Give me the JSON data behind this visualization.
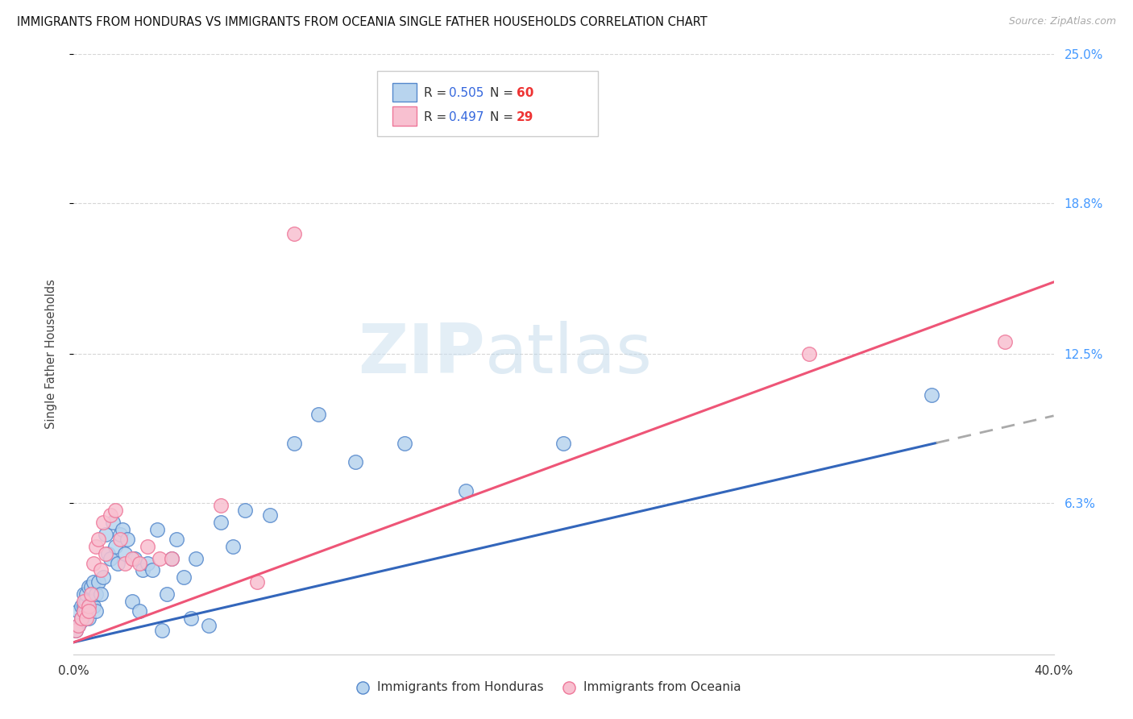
{
  "title": "IMMIGRANTS FROM HONDURAS VS IMMIGRANTS FROM OCEANIA SINGLE FATHER HOUSEHOLDS CORRELATION CHART",
  "source": "Source: ZipAtlas.com",
  "ylabel": "Single Father Households",
  "xlim": [
    0.0,
    0.4
  ],
  "ylim": [
    0.0,
    0.25
  ],
  "xticks": [
    0.0,
    0.1,
    0.2,
    0.3,
    0.4
  ],
  "xtick_labels": [
    "0.0%",
    "",
    "",
    "",
    "40.0%"
  ],
  "ytick_vals_right": [
    0.063,
    0.125,
    0.188,
    0.25
  ],
  "ytick_labels_right": [
    "6.3%",
    "12.5%",
    "18.8%",
    "25.0%"
  ],
  "series1_color": "#b8d4ee",
  "series1_edge": "#5588cc",
  "series2_color": "#f8c0d0",
  "series2_edge": "#ee7799",
  "trendline1_color": "#3366bb",
  "trendline2_color": "#ee5577",
  "trendline_ext_color": "#aaaaaa",
  "R1": 0.505,
  "N1": 60,
  "R2": 0.497,
  "N2": 29,
  "legend_label1": "Immigrants from Honduras",
  "legend_label2": "Immigrants from Oceania",
  "watermark_zip": "ZIP",
  "watermark_atlas": "atlas",
  "title_fontsize": 10.5,
  "source_fontsize": 9,
  "honduras_x": [
    0.001,
    0.002,
    0.002,
    0.003,
    0.003,
    0.003,
    0.004,
    0.004,
    0.004,
    0.005,
    0.005,
    0.005,
    0.006,
    0.006,
    0.006,
    0.007,
    0.007,
    0.008,
    0.008,
    0.009,
    0.009,
    0.01,
    0.011,
    0.012,
    0.013,
    0.014,
    0.015,
    0.016,
    0.017,
    0.018,
    0.019,
    0.02,
    0.021,
    0.022,
    0.024,
    0.025,
    0.027,
    0.028,
    0.03,
    0.032,
    0.034,
    0.036,
    0.038,
    0.04,
    0.042,
    0.045,
    0.048,
    0.05,
    0.055,
    0.06,
    0.065,
    0.07,
    0.08,
    0.09,
    0.1,
    0.115,
    0.135,
    0.16,
    0.2,
    0.35
  ],
  "honduras_y": [
    0.01,
    0.012,
    0.018,
    0.014,
    0.02,
    0.015,
    0.018,
    0.025,
    0.02,
    0.022,
    0.018,
    0.025,
    0.02,
    0.028,
    0.015,
    0.022,
    0.028,
    0.02,
    0.03,
    0.025,
    0.018,
    0.03,
    0.025,
    0.032,
    0.05,
    0.042,
    0.04,
    0.055,
    0.045,
    0.038,
    0.05,
    0.052,
    0.042,
    0.048,
    0.022,
    0.04,
    0.018,
    0.035,
    0.038,
    0.035,
    0.052,
    0.01,
    0.025,
    0.04,
    0.048,
    0.032,
    0.015,
    0.04,
    0.012,
    0.055,
    0.045,
    0.06,
    0.058,
    0.088,
    0.1,
    0.08,
    0.088,
    0.068,
    0.088,
    0.108
  ],
  "oceania_x": [
    0.001,
    0.002,
    0.003,
    0.004,
    0.004,
    0.005,
    0.006,
    0.006,
    0.007,
    0.008,
    0.009,
    0.01,
    0.011,
    0.012,
    0.013,
    0.015,
    0.017,
    0.019,
    0.021,
    0.024,
    0.027,
    0.03,
    0.035,
    0.04,
    0.06,
    0.075,
    0.09,
    0.3,
    0.38
  ],
  "oceania_y": [
    0.01,
    0.012,
    0.015,
    0.018,
    0.022,
    0.015,
    0.02,
    0.018,
    0.025,
    0.038,
    0.045,
    0.048,
    0.035,
    0.055,
    0.042,
    0.058,
    0.06,
    0.048,
    0.038,
    0.04,
    0.038,
    0.045,
    0.04,
    0.04,
    0.062,
    0.03,
    0.175,
    0.125,
    0.13
  ],
  "trendline1_x_end": 0.352,
  "trendline1_ext_end": 0.4,
  "trendline1_y_start": 0.005,
  "trendline1_y_end": 0.088,
  "trendline2_y_start": 0.005,
  "trendline2_y_end": 0.155
}
